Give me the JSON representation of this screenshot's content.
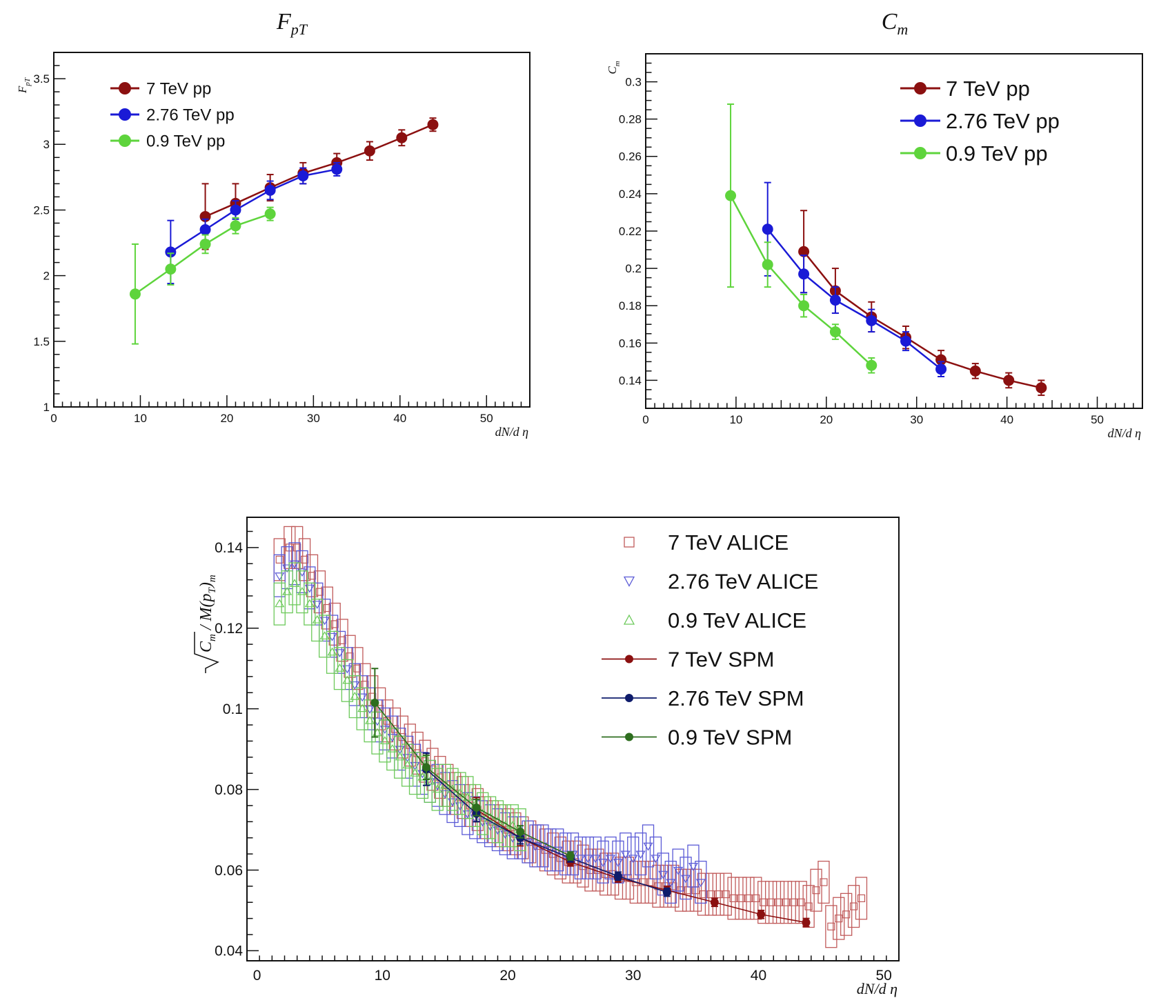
{
  "chart_data": [
    {
      "id": "fpt",
      "type": "line",
      "title": "F_pT",
      "title_main": "F",
      "title_sub": "pT",
      "ylabel_main": "F",
      "ylabel_sub": "pT",
      "xlabel": "dN/d η",
      "xlim": [
        0,
        55
      ],
      "ylim": [
        1,
        3.7
      ],
      "xticks": [
        0,
        10,
        20,
        30,
        40,
        50
      ],
      "xtick_labels": [
        "0",
        "10",
        "20",
        "30",
        "40",
        "50"
      ],
      "yticks": [
        1,
        1.5,
        2,
        2.5,
        3,
        3.5
      ],
      "ytick_labels": [
        "1",
        "1.5",
        "2",
        "2.5",
        "3",
        "3.5"
      ],
      "legend_position": "top-left",
      "series": [
        {
          "name": "7 TeV pp",
          "color": "#8b1010",
          "x": [
            17.5,
            21,
            25,
            28.8,
            32.7,
            36.5,
            40.2,
            43.8
          ],
          "y": [
            2.45,
            2.55,
            2.67,
            2.78,
            2.86,
            2.95,
            3.05,
            3.15
          ],
          "err": [
            0.25,
            0.15,
            0.1,
            0.08,
            0.07,
            0.07,
            0.06,
            0.05
          ]
        },
        {
          "name": "2.76 TeV pp",
          "color": "#1a1ad6",
          "x": [
            13.5,
            17.5,
            21,
            25,
            28.8,
            32.7
          ],
          "y": [
            2.18,
            2.35,
            2.5,
            2.65,
            2.76,
            2.81
          ],
          "err": [
            0.24,
            0.08,
            0.07,
            0.07,
            0.06,
            0.05
          ]
        },
        {
          "name": "0.9 TeV pp",
          "color": "#5ed43c",
          "x": [
            9.4,
            13.5,
            17.5,
            21,
            25
          ],
          "y": [
            1.86,
            2.05,
            2.24,
            2.38,
            2.47
          ],
          "err": [
            0.38,
            0.12,
            0.07,
            0.06,
            0.05
          ]
        }
      ]
    },
    {
      "id": "cm",
      "type": "line",
      "title": "C_m",
      "title_main": "C",
      "title_sub": "m",
      "ylabel_main": "C",
      "ylabel_sub": "m",
      "xlabel": "dN/d η",
      "xlim": [
        0,
        55
      ],
      "ylim": [
        0.125,
        0.315
      ],
      "xticks": [
        0,
        10,
        20,
        30,
        40,
        50
      ],
      "xtick_labels": [
        "0",
        "10",
        "20",
        "30",
        "40",
        "50"
      ],
      "yticks": [
        0.14,
        0.16,
        0.18,
        0.2,
        0.22,
        0.24,
        0.26,
        0.28,
        0.3
      ],
      "ytick_labels": [
        "0.14",
        "0.16",
        "0.18",
        "0.2",
        "0.22",
        "0.24",
        "0.26",
        "0.28",
        "0.3"
      ],
      "legend_position": "top-right",
      "series": [
        {
          "name": "7 TeV pp",
          "color": "#8b1010",
          "x": [
            17.5,
            21,
            25,
            28.8,
            32.7,
            36.5,
            40.2,
            43.8
          ],
          "y": [
            0.209,
            0.188,
            0.174,
            0.163,
            0.151,
            0.145,
            0.14,
            0.136
          ],
          "err": [
            0.022,
            0.012,
            0.008,
            0.006,
            0.005,
            0.004,
            0.004,
            0.004
          ]
        },
        {
          "name": "2.76 TeV pp",
          "color": "#1a1ad6",
          "x": [
            13.5,
            17.5,
            21,
            25,
            28.8,
            32.7
          ],
          "y": [
            0.221,
            0.197,
            0.183,
            0.172,
            0.161,
            0.146
          ],
          "err": [
            0.025,
            0.01,
            0.007,
            0.006,
            0.005,
            0.004
          ]
        },
        {
          "name": "0.9 TeV pp",
          "color": "#5ed43c",
          "x": [
            9.4,
            13.5,
            17.5,
            21,
            25
          ],
          "y": [
            0.239,
            0.202,
            0.18,
            0.166,
            0.148
          ],
          "err": [
            0.049,
            0.012,
            0.006,
            0.004,
            0.004
          ]
        }
      ]
    },
    {
      "id": "ratio",
      "type": "scatter",
      "ylabel_main": "C",
      "ylabel_sub": "m",
      "ylabel_rest": "/ M(p",
      "ylabel_sub2": "T",
      "ylabel_end": ")",
      "ylabel_sub3": "m",
      "xlabel": "dN/d η",
      "xlim": [
        -0.8,
        51.2
      ],
      "ylim": [
        0.0375,
        0.1475
      ],
      "xticks": [
        0,
        10,
        20,
        30,
        40,
        50
      ],
      "xtick_labels": [
        "0",
        "10",
        "20",
        "30",
        "40",
        "50"
      ],
      "yticks": [
        0.04,
        0.06,
        0.08,
        0.1,
        0.12,
        0.14
      ],
      "ytick_labels": [
        "0.04",
        "0.06",
        "0.08",
        "0.1",
        "0.12",
        "0.14"
      ],
      "legend_position": "top-right",
      "alice_series": [
        {
          "name": "7 TeV ALICE",
          "color": "#c05a5a",
          "marker": "square",
          "x": [
            1.8,
            2.6,
            3.2,
            3.8,
            4.4,
            5.0,
            5.6,
            6.2,
            6.8,
            7.4,
            8.0,
            8.6,
            9.2,
            9.8,
            10.4,
            11.0,
            11.6,
            12.2,
            12.8,
            13.4,
            14.0,
            14.6,
            15.2,
            15.8,
            16.4,
            17.0,
            17.6,
            18.2,
            18.8,
            19.4,
            20.0,
            20.6,
            21.2,
            21.8,
            22.4,
            23.0,
            23.6,
            24.2,
            24.8,
            25.4,
            26.0,
            26.6,
            27.2,
            27.8,
            28.4,
            29.0,
            29.6,
            30.2,
            30.8,
            31.4,
            32.0,
            32.6,
            33.2,
            33.8,
            34.4,
            35.0,
            35.6,
            36.2,
            36.8,
            37.4,
            38.0,
            38.6,
            39.2,
            39.8,
            40.4,
            41.0,
            41.6,
            42.2,
            42.8,
            43.4,
            44.0,
            44.6,
            45.2,
            45.8,
            46.4,
            47.0,
            47.6,
            48.2
          ],
          "y": [
            0.137,
            0.14,
            0.14,
            0.137,
            0.133,
            0.129,
            0.125,
            0.121,
            0.117,
            0.113,
            0.11,
            0.106,
            0.103,
            0.1,
            0.097,
            0.095,
            0.093,
            0.091,
            0.089,
            0.087,
            0.085,
            0.083,
            0.081,
            0.079,
            0.078,
            0.076,
            0.075,
            0.073,
            0.072,
            0.071,
            0.07,
            0.069,
            0.068,
            0.067,
            0.066,
            0.065,
            0.064,
            0.063,
            0.062,
            0.062,
            0.061,
            0.06,
            0.06,
            0.059,
            0.059,
            0.058,
            0.058,
            0.057,
            0.057,
            0.057,
            0.056,
            0.056,
            0.056,
            0.055,
            0.055,
            0.055,
            0.054,
            0.054,
            0.054,
            0.054,
            0.053,
            0.053,
            0.053,
            0.053,
            0.052,
            0.052,
            0.052,
            0.052,
            0.052,
            0.052,
            0.051,
            0.055,
            0.057,
            0.046,
            0.048,
            0.049,
            0.051,
            0.053
          ]
        },
        {
          "name": "2.76 TeV ALICE",
          "color": "#5a5ad6",
          "marker": "triangle-down",
          "x": [
            1.8,
            2.4,
            3.0,
            3.6,
            4.2,
            4.8,
            5.4,
            6.0,
            6.6,
            7.2,
            7.8,
            8.4,
            9.0,
            9.6,
            10.2,
            10.8,
            11.4,
            12.0,
            12.6,
            13.2,
            13.8,
            14.4,
            15.0,
            15.6,
            16.2,
            16.8,
            17.4,
            18.0,
            18.6,
            19.2,
            19.8,
            20.4,
            21.0,
            21.6,
            22.2,
            22.8,
            23.4,
            24.0,
            24.6,
            25.2,
            25.8,
            26.4,
            27.0,
            27.6,
            28.2,
            28.8,
            29.4,
            30.0,
            30.6,
            31.2,
            31.8,
            32.4,
            33.0,
            33.6,
            34.2,
            34.8,
            35.4
          ],
          "y": [
            0.133,
            0.135,
            0.136,
            0.134,
            0.13,
            0.126,
            0.122,
            0.118,
            0.114,
            0.11,
            0.106,
            0.103,
            0.1,
            0.097,
            0.095,
            0.093,
            0.09,
            0.088,
            0.086,
            0.084,
            0.082,
            0.081,
            0.079,
            0.077,
            0.076,
            0.074,
            0.073,
            0.072,
            0.071,
            0.07,
            0.069,
            0.068,
            0.068,
            0.067,
            0.066,
            0.066,
            0.065,
            0.065,
            0.064,
            0.064,
            0.063,
            0.063,
            0.063,
            0.062,
            0.063,
            0.062,
            0.064,
            0.063,
            0.064,
            0.066,
            0.063,
            0.059,
            0.057,
            0.06,
            0.058,
            0.061,
            0.057
          ]
        },
        {
          "name": "0.9 TeV ALICE",
          "color": "#6cc95a",
          "marker": "triangle-up",
          "x": [
            1.8,
            2.4,
            3.0,
            3.6,
            4.2,
            4.8,
            5.4,
            6.0,
            6.6,
            7.2,
            7.8,
            8.4,
            9.0,
            9.6,
            10.2,
            10.8,
            11.4,
            12.0,
            12.6,
            13.2,
            13.8,
            14.4,
            15.0,
            15.6,
            16.2,
            16.8,
            17.4,
            18.0,
            18.6,
            19.2,
            19.8,
            20.4,
            21.0
          ],
          "y": [
            0.126,
            0.129,
            0.131,
            0.129,
            0.126,
            0.122,
            0.118,
            0.114,
            0.11,
            0.107,
            0.103,
            0.1,
            0.097,
            0.094,
            0.092,
            0.09,
            0.088,
            0.086,
            0.084,
            0.083,
            0.082,
            0.08,
            0.081,
            0.08,
            0.079,
            0.078,
            0.076,
            0.074,
            0.073,
            0.072,
            0.071,
            0.071,
            0.07
          ]
        }
      ],
      "spm_series": [
        {
          "name": "7 TeV SPM",
          "color": "#8b1010",
          "x": [
            17.5,
            21,
            25,
            28.8,
            32.7,
            36.5,
            40.2,
            43.8
          ],
          "y": [
            0.075,
            0.068,
            0.062,
            0.058,
            0.055,
            0.052,
            0.049,
            0.047
          ],
          "err": [
            0.003,
            0.002,
            0.001,
            0.001,
            0.001,
            0.001,
            0.001,
            0.001
          ]
        },
        {
          "name": "2.76 TeV SPM",
          "color": "#0e1c6b",
          "x": [
            13.5,
            17.5,
            21,
            25,
            28.8,
            32.7
          ],
          "y": [
            0.085,
            0.074,
            0.068,
            0.063,
            0.0585,
            0.0545
          ],
          "err": [
            0.004,
            0.002,
            0.0015,
            0.001,
            0.001,
            0.001
          ]
        },
        {
          "name": "0.9 TeV SPM",
          "color": "#2e6e1f",
          "x": [
            9.4,
            13.5,
            17.5,
            21,
            25
          ],
          "y": [
            0.1015,
            0.0855,
            0.0755,
            0.0695,
            0.0635
          ],
          "err": [
            0.0085,
            0.003,
            0.002,
            0.0015,
            0.001
          ]
        }
      ]
    }
  ]
}
